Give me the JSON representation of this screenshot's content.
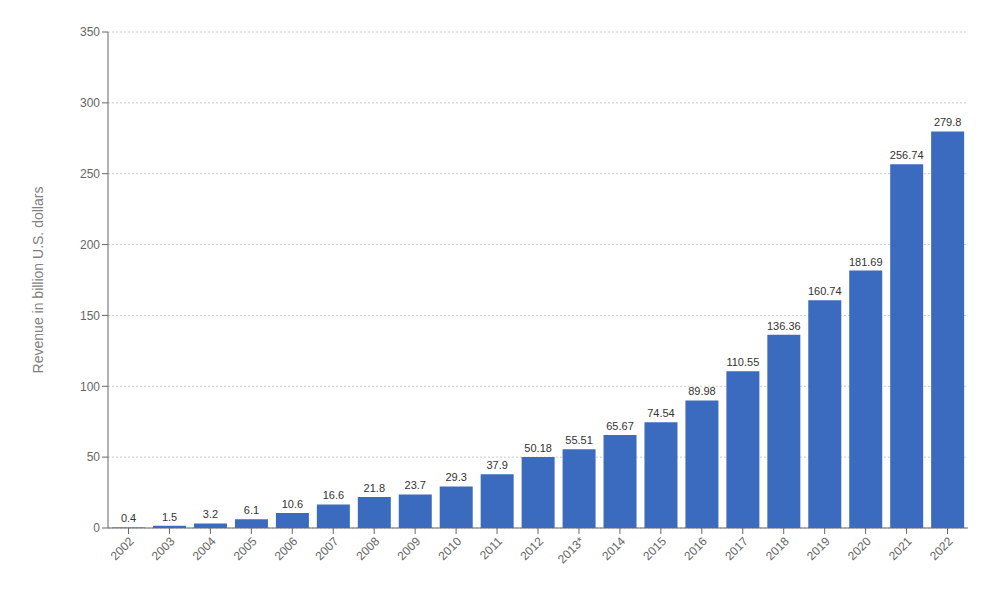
{
  "chart_data": {
    "type": "bar",
    "ylabel": "Revenue in billion U.S. dollars",
    "categories": [
      "2002",
      "2003",
      "2004",
      "2005",
      "2006",
      "2007",
      "2008",
      "2009",
      "2010",
      "2011",
      "2012",
      "2013*",
      "2014",
      "2015",
      "2016",
      "2017",
      "2018",
      "2019",
      "2020",
      "2021",
      "2022"
    ],
    "values": [
      0.4,
      1.5,
      3.2,
      6.1,
      10.6,
      16.6,
      21.8,
      23.7,
      29.3,
      37.9,
      50.18,
      55.51,
      65.67,
      74.54,
      89.98,
      110.55,
      136.36,
      160.74,
      181.69,
      256.74,
      279.8
    ],
    "color": "#3a6bbf",
    "ylim": [
      0,
      350
    ],
    "yticks": [
      0,
      50,
      100,
      150,
      200,
      250,
      300,
      350
    ],
    "grid": true,
    "data_labels": true
  }
}
